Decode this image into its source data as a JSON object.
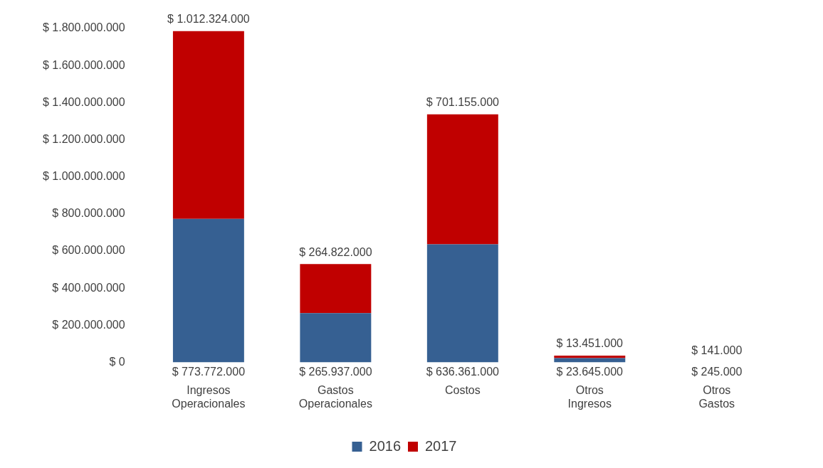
{
  "chart_data": {
    "type": "bar",
    "stacked": true,
    "categories": [
      "Ingresos Operacionales",
      "Gastos Operacionales",
      "Costos",
      "Otros Ingresos",
      "Otros Gastos"
    ],
    "series": [
      {
        "name": "2016",
        "color": "#366092",
        "values": [
          773772000,
          265937000,
          636361000,
          23645000,
          245000
        ],
        "value_labels": [
          "$ 773.772.000",
          "$ 265.937.000",
          "$ 636.361.000",
          "$ 23.645.000",
          "$ 245.000"
        ]
      },
      {
        "name": "2017",
        "color": "#c00000",
        "values": [
          1012324000,
          264822000,
          701155000,
          13451000,
          141000
        ],
        "value_labels": [
          "$ 1.012.324.000",
          "$ 264.822.000",
          "$ 701.155.000",
          "$ 13.451.000",
          "$ 141.000"
        ]
      }
    ],
    "ylim": [
      0,
      1800000000
    ],
    "yticks": [
      {
        "value": 0,
        "label": "$ 0"
      },
      {
        "value": 200000000,
        "label": "$ 200.000.000"
      },
      {
        "value": 400000000,
        "label": "$ 400.000.000"
      },
      {
        "value": 600000000,
        "label": "$ 600.000.000"
      },
      {
        "value": 800000000,
        "label": "$ 800.000.000"
      },
      {
        "value": 1000000000,
        "label": "$ 1.000.000.000"
      },
      {
        "value": 1200000000,
        "label": "$ 1.200.000.000"
      },
      {
        "value": 1400000000,
        "label": "$ 1.400.000.000"
      },
      {
        "value": 1600000000,
        "label": "$ 1.600.000.000"
      },
      {
        "value": 1800000000,
        "label": "$ 1.800.000.000"
      }
    ],
    "grid": false,
    "legend": "bottom"
  }
}
